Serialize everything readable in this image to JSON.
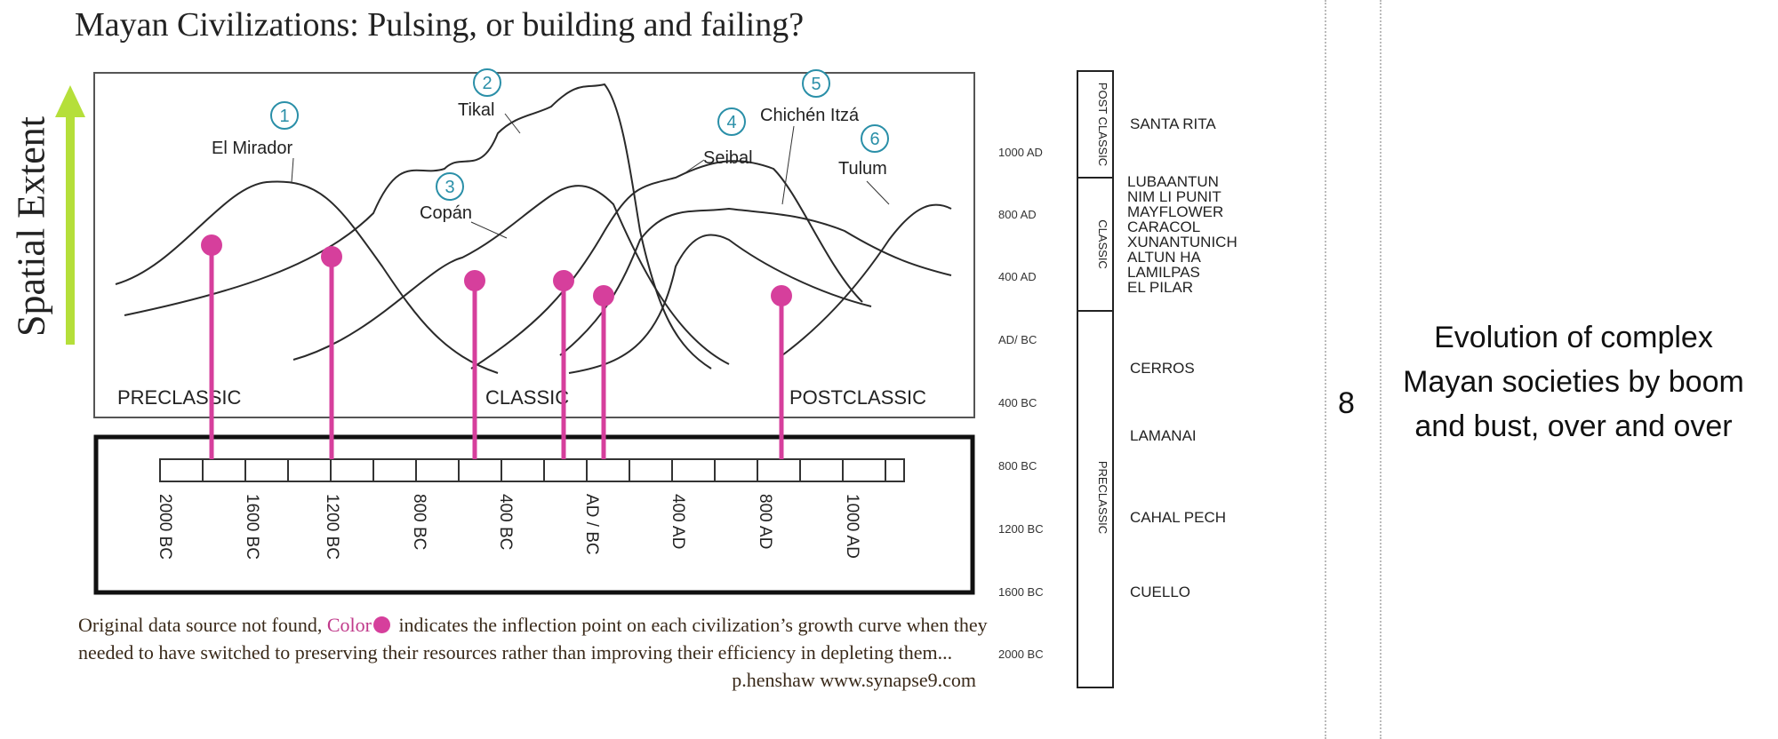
{
  "title": "Mayan Civilizations: Pulsing, or building and failing?",
  "y_axis_label": "Spatial Extent",
  "chart_data": {
    "type": "line",
    "title": "Mayan Civilizations: Pulsing, or building and failing?",
    "ylabel": "Spatial Extent",
    "periods": [
      "PRECLASSIC",
      "CLASSIC",
      "POSTCLASSIC"
    ],
    "timeline_ticks": [
      "2000 BC",
      "1600 BC",
      "1200 BC",
      "800 BC",
      "400 BC",
      "AD / BC",
      "400 AD",
      "800 AD",
      "1000 AD"
    ],
    "series": [
      {
        "id": "1",
        "name": "El Mirador",
        "inflection": "1850 BC"
      },
      {
        "id": "2",
        "name": "Tikal",
        "inflection": "1200 BC"
      },
      {
        "id": "3",
        "name": "Copán",
        "inflection": "550 BC"
      },
      {
        "id": "4",
        "name": "Seibal",
        "inflection": "AD 0"
      },
      {
        "id": "5",
        "name": "Chichén Itzá",
        "inflection": "AD 150"
      },
      {
        "id": "6",
        "name": "Tulum",
        "inflection": "AD 820"
      },
      {
        "name": "",
        "inflection": ""
      }
    ]
  },
  "date_scale": [
    "1000 AD",
    "800 AD",
    "400 AD",
    "AD/ BC",
    "400 BC",
    "800 BC",
    "1200 BC",
    "1600 BC",
    "2000 BC"
  ],
  "eras": [
    "POST CLASSIC",
    "CLASSIC",
    "PRECLASSIC"
  ],
  "sites": [
    "SANTA RITA",
    "LUBAANTUN",
    "NIM LI PUNIT",
    "MAYFLOWER",
    "CARACOL",
    "XUNANTUNICH",
    "ALTUN HA",
    "LAMILPAS",
    "EL PILAR",
    "CERROS",
    "LAMANAI",
    "CAHAL PECH",
    "CUELLO"
  ],
  "caption": {
    "part1": "Original data source not found, ",
    "color_word": "Color",
    "part2": " indicates the inflection point on each civilization’s growth curve when they needed to have switched to preserving their resources rather than improving their efficiency in depleting them...",
    "credit": "p.henshaw www.synapse9.com"
  },
  "slide_number": "8",
  "note": "Evolution of complex Mayan societies by boom and bust, over and over",
  "colors": {
    "marker": "#d63f9c",
    "arrow": "#b5df3a",
    "circle": "#2a8fa8"
  }
}
